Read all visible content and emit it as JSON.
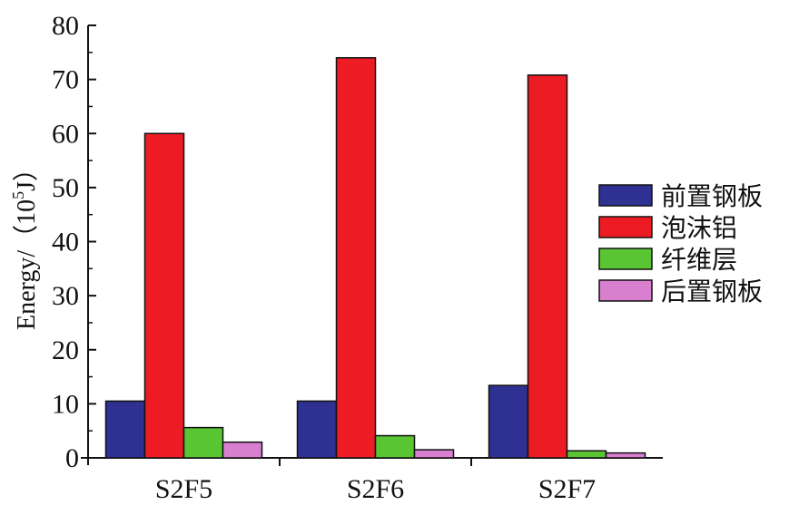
{
  "chart_data": {
    "type": "bar",
    "categories": [
      "S2F5",
      "S2F6",
      "S2F7"
    ],
    "series": [
      {
        "name": "前置钢板",
        "color": "#2e3192",
        "values": [
          10.5,
          10.5,
          13.4
        ]
      },
      {
        "name": "泡沫铝",
        "color": "#ed1c24",
        "values": [
          60,
          74,
          70.8
        ]
      },
      {
        "name": "纤维层",
        "color": "#5ac532",
        "values": [
          5.6,
          4.1,
          1.3
        ]
      },
      {
        "name": "后置钢板",
        "color": "#d87fcf",
        "values": [
          2.9,
          1.5,
          0.9
        ]
      }
    ],
    "title": "",
    "xlabel": "",
    "ylabel_prefix": "Energy/（10",
    "ylabel_sup": "5",
    "ylabel_suffix": "J）",
    "ylim": [
      0,
      80
    ],
    "yticks": [
      "0",
      "10",
      "20",
      "30",
      "40",
      "50",
      "60",
      "70",
      "80"
    ],
    "legend_position": "right",
    "grid": false
  }
}
